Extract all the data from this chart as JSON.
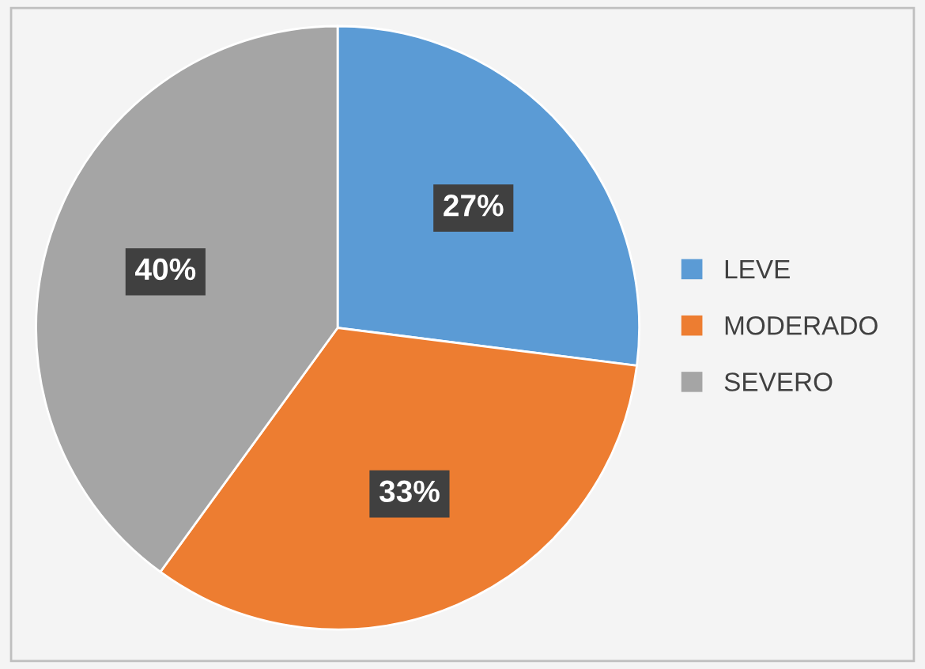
{
  "chart_data": {
    "type": "pie",
    "categories": [
      "LEVE",
      "MODERADO",
      "SEVERO"
    ],
    "values": [
      27,
      33,
      40
    ],
    "colors": [
      "#5b9bd5",
      "#ed7d31",
      "#a5a5a5"
    ],
    "value_labels": [
      "27%",
      "33%",
      "40%"
    ],
    "legend": "right"
  }
}
